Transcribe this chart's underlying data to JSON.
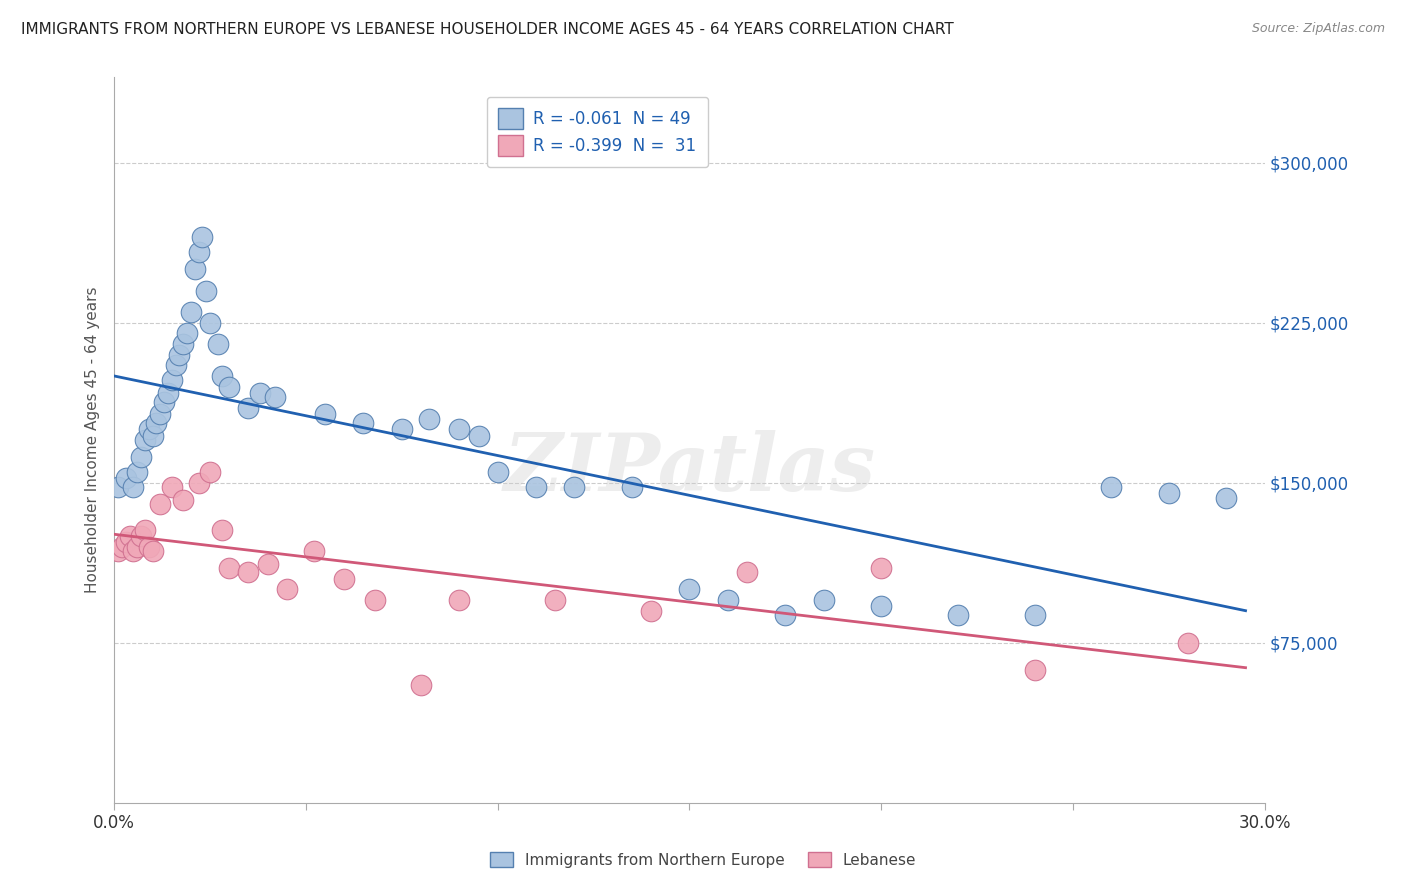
{
  "title": "IMMIGRANTS FROM NORTHERN EUROPE VS LEBANESE HOUSEHOLDER INCOME AGES 45 - 64 YEARS CORRELATION CHART",
  "source": "Source: ZipAtlas.com",
  "ylabel": "Householder Income Ages 45 - 64 years",
  "yticks": [
    75000,
    150000,
    225000,
    300000
  ],
  "ytick_labels": [
    "$75,000",
    "$150,000",
    "$225,000",
    "$300,000"
  ],
  "xlim": [
    0.0,
    0.3
  ],
  "ylim": [
    0,
    340000
  ],
  "watermark": "ZIPatlas",
  "legend_blue_label": "R = -0.061  N = 49",
  "legend_pink_label": "R = -0.399  N =  31",
  "blue_color": "#aac4e0",
  "blue_edge_color": "#5580b0",
  "blue_line_color": "#2060b0",
  "pink_color": "#f0a8b8",
  "pink_edge_color": "#d07090",
  "pink_line_color": "#d05878",
  "legend_text_color": "#2060b0",
  "ytick_color": "#2060b0",
  "background_color": "#ffffff",
  "grid_color": "#cccccc",
  "blue_scatter_x": [
    0.001,
    0.003,
    0.005,
    0.006,
    0.007,
    0.008,
    0.009,
    0.01,
    0.011,
    0.012,
    0.013,
    0.014,
    0.015,
    0.016,
    0.017,
    0.018,
    0.019,
    0.02,
    0.021,
    0.022,
    0.023,
    0.024,
    0.025,
    0.027,
    0.028,
    0.03,
    0.035,
    0.038,
    0.042,
    0.055,
    0.065,
    0.075,
    0.082,
    0.09,
    0.095,
    0.1,
    0.11,
    0.12,
    0.135,
    0.15,
    0.16,
    0.175,
    0.185,
    0.2,
    0.22,
    0.24,
    0.26,
    0.275,
    0.29
  ],
  "blue_scatter_y": [
    148000,
    152000,
    148000,
    155000,
    162000,
    170000,
    175000,
    172000,
    178000,
    182000,
    188000,
    192000,
    198000,
    205000,
    210000,
    215000,
    220000,
    230000,
    250000,
    258000,
    265000,
    240000,
    225000,
    215000,
    200000,
    195000,
    185000,
    192000,
    190000,
    182000,
    178000,
    175000,
    180000,
    175000,
    172000,
    155000,
    148000,
    148000,
    148000,
    100000,
    95000,
    88000,
    95000,
    92000,
    88000,
    88000,
    148000,
    145000,
    143000
  ],
  "pink_scatter_x": [
    0.001,
    0.002,
    0.003,
    0.004,
    0.005,
    0.006,
    0.007,
    0.008,
    0.009,
    0.01,
    0.012,
    0.015,
    0.018,
    0.022,
    0.025,
    0.028,
    0.03,
    0.035,
    0.04,
    0.045,
    0.052,
    0.06,
    0.068,
    0.08,
    0.09,
    0.115,
    0.14,
    0.165,
    0.2,
    0.24,
    0.28
  ],
  "pink_scatter_y": [
    118000,
    120000,
    122000,
    125000,
    118000,
    120000,
    125000,
    128000,
    120000,
    118000,
    140000,
    148000,
    142000,
    150000,
    155000,
    128000,
    110000,
    108000,
    112000,
    100000,
    118000,
    105000,
    95000,
    55000,
    95000,
    95000,
    90000,
    108000,
    110000,
    62000,
    75000
  ]
}
